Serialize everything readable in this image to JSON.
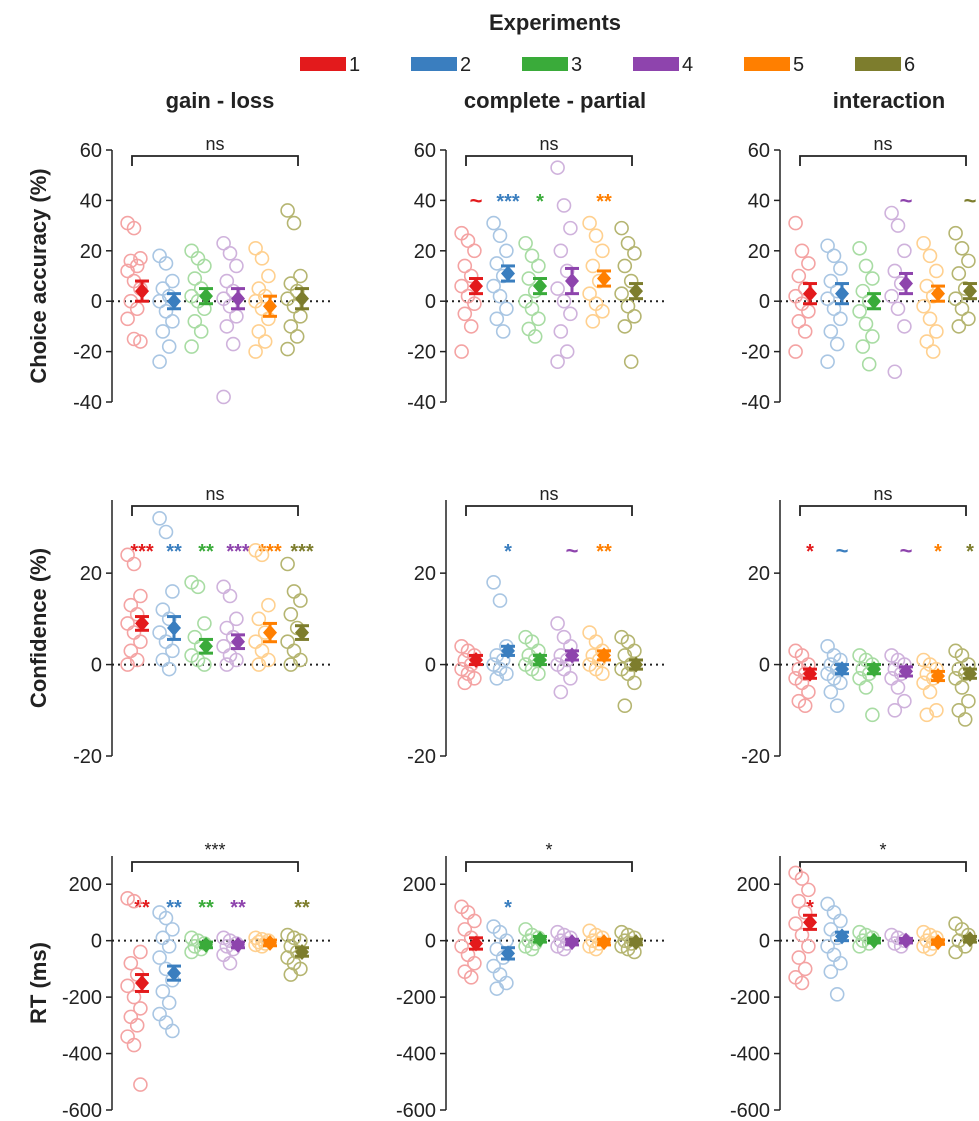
{
  "legend": {
    "title": "Experiments",
    "entries": [
      {
        "label": "1",
        "color": "#e31a1c"
      },
      {
        "label": "2",
        "color": "#3a7ebf"
      },
      {
        "label": "3",
        "color": "#3aab3a"
      },
      {
        "label": "4",
        "color": "#8e44ad"
      },
      {
        "label": "5",
        "color": "#ff7f00"
      },
      {
        "label": "6",
        "color": "#7d7d2d"
      }
    ]
  },
  "colors": [
    "#e31a1c",
    "#3a7ebf",
    "#3aab3a",
    "#8e44ad",
    "#ff7f00",
    "#7d7d2d"
  ],
  "light_colors": [
    "#f4a3a3",
    "#a9c6e3",
    "#a8dca3",
    "#cfb2dc",
    "#ffd08f",
    "#b5b571"
  ],
  "columns": [
    "gain - loss",
    "complete - partial",
    "interaction"
  ],
  "chart_data": [
    {
      "type": "scatter",
      "xlabel": "",
      "ylabel": "Choice accuracy (%)",
      "ylim": [
        -40,
        60
      ],
      "yticks": [
        -40,
        -20,
        0,
        20,
        40,
        60
      ],
      "column": "gain - loss",
      "bracket": "ns",
      "stars": [
        "",
        "",
        "",
        "",
        "",
        ""
      ],
      "means": [
        4,
        0,
        2,
        1,
        -2,
        1
      ],
      "errors": [
        4,
        3,
        3,
        4,
        4,
        4
      ],
      "points": [
        [
          31,
          29,
          17,
          16,
          14,
          12,
          8,
          5,
          0,
          -3,
          -7,
          -15,
          -16
        ],
        [
          18,
          15,
          8,
          5,
          2,
          0,
          -4,
          -8,
          -12,
          -18,
          -24
        ],
        [
          20,
          17,
          14,
          9,
          5,
          2,
          0,
          -3,
          -8,
          -12,
          -18
        ],
        [
          23,
          19,
          14,
          8,
          4,
          1,
          -2,
          -6,
          -10,
          -17,
          -38
        ],
        [
          21,
          17,
          10,
          5,
          2,
          0,
          -3,
          -7,
          -12,
          -16,
          -20
        ],
        [
          36,
          31,
          10,
          7,
          4,
          1,
          -2,
          -6,
          -10,
          -14,
          -19
        ]
      ]
    },
    {
      "type": "scatter",
      "xlabel": "",
      "ylabel": "",
      "ylim": [
        -40,
        60
      ],
      "yticks": [
        -40,
        -20,
        0,
        20,
        40,
        60
      ],
      "column": "complete - partial",
      "bracket": "ns",
      "stars": [
        "~",
        "***",
        "*",
        "",
        "**",
        ""
      ],
      "means": [
        6,
        11,
        6,
        8,
        9,
        4
      ],
      "errors": [
        3,
        3,
        3,
        5,
        3,
        3
      ],
      "points": [
        [
          27,
          24,
          20,
          14,
          10,
          6,
          2,
          -1,
          -5,
          -10,
          -20
        ],
        [
          31,
          26,
          20,
          15,
          10,
          6,
          2,
          -3,
          -7,
          -12
        ],
        [
          23,
          18,
          14,
          9,
          4,
          0,
          -3,
          -7,
          -11,
          -14
        ],
        [
          53,
          38,
          29,
          20,
          12,
          5,
          0,
          -5,
          -12,
          -20,
          -24
        ],
        [
          31,
          26,
          20,
          14,
          8,
          3,
          -1,
          -4,
          -8
        ],
        [
          29,
          23,
          19,
          14,
          8,
          3,
          -2,
          -6,
          -10,
          -24
        ]
      ]
    },
    {
      "type": "scatter",
      "xlabel": "",
      "ylabel": "",
      "ylim": [
        -40,
        60
      ],
      "yticks": [
        -40,
        -20,
        0,
        20,
        40,
        60
      ],
      "column": "interaction",
      "bracket": "ns",
      "stars": [
        "",
        "",
        "",
        "~",
        "",
        "~"
      ],
      "means": [
        3,
        3,
        0,
        7,
        3,
        4
      ],
      "errors": [
        4,
        4,
        3,
        4,
        3,
        3
      ],
      "points": [
        [
          31,
          20,
          15,
          10,
          5,
          2,
          -1,
          -4,
          -8,
          -12,
          -20
        ],
        [
          22,
          18,
          13,
          8,
          4,
          1,
          -3,
          -7,
          -12,
          -17,
          -24
        ],
        [
          21,
          14,
          9,
          4,
          0,
          -4,
          -9,
          -14,
          -18,
          -25
        ],
        [
          35,
          30,
          20,
          12,
          7,
          2,
          -3,
          -10,
          -28
        ],
        [
          23,
          18,
          12,
          6,
          2,
          -2,
          -7,
          -12,
          -16,
          -20
        ],
        [
          27,
          21,
          16,
          11,
          5,
          1,
          -3,
          -7,
          -10
        ]
      ]
    },
    {
      "type": "scatter",
      "xlabel": "",
      "ylabel": "Confidence (%)",
      "ylim": [
        -20,
        36
      ],
      "yticks": [
        -20,
        0,
        20
      ],
      "column": "gain - loss",
      "bracket": "ns",
      "stars": [
        "***",
        "**",
        "**",
        "***",
        "***",
        "***"
      ],
      "means": [
        9,
        8,
        4,
        5,
        7,
        7
      ],
      "errors": [
        1.5,
        2.5,
        1.5,
        1.5,
        2,
        1.5
      ],
      "points": [
        [
          24,
          22,
          15,
          13,
          11,
          9,
          7,
          5,
          3,
          1,
          0
        ],
        [
          32,
          29,
          16,
          12,
          10,
          7,
          5,
          3,
          1,
          -1
        ],
        [
          18,
          17,
          9,
          6,
          4,
          2,
          1,
          0
        ],
        [
          17,
          15,
          10,
          8,
          6,
          4,
          2,
          1,
          0
        ],
        [
          25,
          24,
          13,
          10,
          7,
          5,
          3,
          1,
          0
        ],
        [
          22,
          16,
          14,
          11,
          8,
          5,
          3,
          1,
          0
        ]
      ]
    },
    {
      "type": "scatter",
      "xlabel": "",
      "ylabel": "",
      "ylim": [
        -20,
        36
      ],
      "yticks": [
        -20,
        0,
        20
      ],
      "column": "complete - partial",
      "bracket": "ns",
      "stars": [
        "",
        "*",
        "",
        "~",
        "**",
        ""
      ],
      "means": [
        1,
        3,
        1,
        2,
        2,
        0
      ],
      "errors": [
        1,
        1,
        1,
        1,
        1,
        1
      ],
      "points": [
        [
          4,
          3,
          2,
          1,
          0,
          -1,
          -2,
          -3,
          -4
        ],
        [
          18,
          14,
          4,
          2,
          1,
          0,
          -1,
          -2,
          -3
        ],
        [
          6,
          5,
          3,
          2,
          1,
          0,
          -1,
          -2
        ],
        [
          9,
          6,
          4,
          2,
          1,
          0,
          -1,
          -3,
          -6
        ],
        [
          7,
          5,
          3,
          2,
          1,
          0,
          -1,
          -2
        ],
        [
          6,
          5,
          3,
          2,
          0,
          -1,
          -2,
          -4,
          -9
        ]
      ]
    },
    {
      "type": "scatter",
      "xlabel": "",
      "ylabel": "",
      "ylim": [
        -20,
        36
      ],
      "yticks": [
        -20,
        0,
        20
      ],
      "column": "interaction",
      "bracket": "ns",
      "stars": [
        "*",
        "~",
        "",
        "~",
        "*",
        "*"
      ],
      "means": [
        -2,
        -1,
        -1,
        -1.5,
        -2.5,
        -2
      ],
      "errors": [
        1,
        1,
        1,
        1,
        1,
        1
      ],
      "points": [
        [
          3,
          2,
          0,
          -1,
          -2,
          -3,
          -4,
          -6,
          -8,
          -9
        ],
        [
          4,
          2,
          1,
          0,
          -1,
          -2,
          -3,
          -4,
          -6,
          -9
        ],
        [
          2,
          1,
          0,
          -1,
          -2,
          -3,
          -5,
          -11
        ],
        [
          2,
          1,
          0,
          -1,
          -2,
          -3,
          -5,
          -8,
          -10
        ],
        [
          1,
          0,
          -1,
          -2,
          -3,
          -4,
          -6,
          -10,
          -11
        ],
        [
          3,
          2,
          0,
          -1,
          -2,
          -3,
          -5,
          -8,
          -10,
          -12
        ]
      ]
    },
    {
      "type": "scatter",
      "xlabel": "",
      "ylabel": "RT (ms)",
      "ylim": [
        -600,
        300
      ],
      "yticks": [
        -600,
        -400,
        -200,
        0,
        200
      ],
      "column": "gain - loss",
      "bracket": "***",
      "stars": [
        "**",
        "**",
        "**",
        "**",
        "",
        "**"
      ],
      "means": [
        -150,
        -115,
        -15,
        -15,
        -8,
        -40
      ],
      "errors": [
        30,
        25,
        10,
        10,
        10,
        15
      ],
      "points": [
        [
          150,
          140,
          -40,
          -80,
          -120,
          -160,
          -200,
          -240,
          -270,
          -300,
          -340,
          -370,
          -510
        ],
        [
          100,
          80,
          40,
          10,
          -20,
          -60,
          -100,
          -140,
          -180,
          -220,
          -260,
          -290,
          -320
        ],
        [
          10,
          0,
          -10,
          -20,
          -30,
          -40
        ],
        [
          10,
          0,
          -10,
          -20,
          -30,
          -50,
          -80
        ],
        [
          10,
          5,
          0,
          -5,
          -10,
          -15,
          -20
        ],
        [
          20,
          10,
          0,
          -20,
          -40,
          -60,
          -80,
          -100,
          -120
        ]
      ]
    },
    {
      "type": "scatter",
      "xlabel": "",
      "ylabel": "",
      "ylim": [
        -600,
        300
      ],
      "yticks": [
        -600,
        -400,
        -200,
        0,
        200
      ],
      "column": "complete - partial",
      "bracket": "*",
      "stars": [
        "",
        "*",
        "",
        "",
        "",
        ""
      ],
      "means": [
        -10,
        -45,
        5,
        -5,
        -5,
        -5
      ],
      "errors": [
        20,
        20,
        10,
        10,
        10,
        10
      ],
      "points": [
        [
          120,
          100,
          70,
          40,
          10,
          -20,
          -50,
          -80,
          -110,
          -130
        ],
        [
          50,
          30,
          0,
          -30,
          -60,
          -90,
          -120,
          -150,
          -170
        ],
        [
          40,
          20,
          10,
          0,
          -10,
          -20,
          -30
        ],
        [
          30,
          20,
          10,
          0,
          -10,
          -20,
          -30
        ],
        [
          35,
          20,
          10,
          0,
          -10,
          -20,
          -30
        ],
        [
          30,
          20,
          10,
          0,
          -10,
          -20,
          -30,
          -40
        ]
      ]
    },
    {
      "type": "scatter",
      "xlabel": "",
      "ylabel": "",
      "ylim": [
        -600,
        300
      ],
      "yticks": [
        -600,
        -400,
        -200,
        0,
        200
      ],
      "column": "interaction",
      "bracket": "*",
      "stars": [
        "*",
        "",
        "",
        "",
        "",
        ""
      ],
      "means": [
        65,
        15,
        0,
        0,
        -5,
        5
      ],
      "errors": [
        25,
        15,
        8,
        8,
        8,
        10
      ],
      "points": [
        [
          240,
          220,
          180,
          140,
          100,
          60,
          20,
          -20,
          -60,
          -100,
          -130,
          -150
        ],
        [
          130,
          100,
          70,
          40,
          10,
          -20,
          -50,
          -80,
          -110,
          -190
        ],
        [
          30,
          20,
          10,
          0,
          -10,
          -20
        ],
        [
          20,
          10,
          0,
          -10,
          -20
        ],
        [
          30,
          20,
          10,
          0,
          -10,
          -20,
          -30
        ],
        [
          60,
          40,
          20,
          0,
          -20,
          -40
        ]
      ]
    }
  ]
}
